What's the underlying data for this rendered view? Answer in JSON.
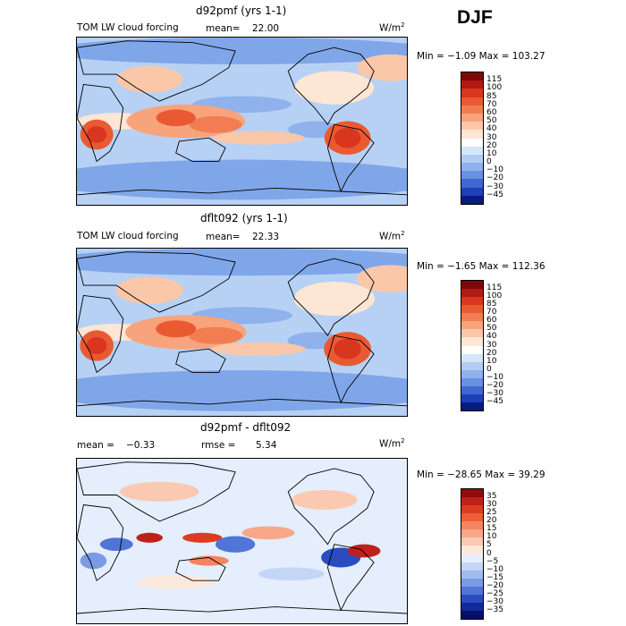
{
  "season": "DJF",
  "panels": [
    {
      "title": "d92pmf (yrs 1-1)",
      "variable": "TOM LW cloud forcing",
      "mean_label": "mean=",
      "mean": "22.00",
      "units": "W/m",
      "units_exp": "2",
      "minmax": "Min =  −1.09 Max = 103.27",
      "levels": [
        "115",
        "100",
        "85",
        "70",
        "60",
        "50",
        "40",
        "30",
        "20",
        "10",
        "0",
        "−10",
        "−20",
        "−30",
        "−45"
      ],
      "colors": [
        "#7a0a0a",
        "#b01a12",
        "#d8361e",
        "#ea5a32",
        "#f27d52",
        "#f7a47c",
        "#fac7a8",
        "#fde6d4",
        "#ffffff",
        "#d4e6fb",
        "#b2cdf4",
        "#8fb1ec",
        "#6991e1",
        "#3f68d0",
        "#1d3fb8",
        "#091a80"
      ]
    },
    {
      "title": "dflt092 (yrs 1-1)",
      "variable": "TOM LW cloud forcing",
      "mean_label": "mean=",
      "mean": "22.33",
      "units": "W/m",
      "units_exp": "2",
      "minmax": "Min =  −1.65 Max = 112.36",
      "levels": [
        "115",
        "100",
        "85",
        "70",
        "60",
        "50",
        "40",
        "30",
        "20",
        "10",
        "0",
        "−10",
        "−20",
        "−30",
        "−45"
      ],
      "colors": [
        "#7a0a0a",
        "#b01a12",
        "#d8361e",
        "#ea5a32",
        "#f27d52",
        "#f7a47c",
        "#fac7a8",
        "#fde6d4",
        "#ffffff",
        "#d4e6fb",
        "#b2cdf4",
        "#8fb1ec",
        "#6991e1",
        "#3f68d0",
        "#1d3fb8",
        "#091a80"
      ]
    },
    {
      "title": "d92pmf - dflt092",
      "mean_label": "mean =",
      "mean": "−0.33",
      "rmse_label": "rmse =",
      "rmse": "5.34",
      "units": "W/m",
      "units_exp": "2",
      "minmax": "Min = −28.65 Max =  39.29",
      "levels": [
        "35",
        "30",
        "25",
        "20",
        "15",
        "10",
        "5",
        "0",
        "−5",
        "−10",
        "−15",
        "−20",
        "−25",
        "−30",
        "−35"
      ],
      "colors": [
        "#8a0e0e",
        "#c0201a",
        "#dc3b22",
        "#ec5e38",
        "#f48460",
        "#f8a888",
        "#fbc9b2",
        "#fde8dc",
        "#e6eefc",
        "#c4d6f6",
        "#9fbbee",
        "#7a9be4",
        "#5075d6",
        "#2a4cc0",
        "#13289a",
        "#070f6a"
      ]
    }
  ],
  "chart_data": {
    "type": "heatmap",
    "season": "DJF",
    "maps": [
      {
        "title": "d92pmf (yrs 1-1)",
        "field": "TOM LW cloud forcing",
        "units": "W/m2",
        "mean": 22.0,
        "min": -1.09,
        "max": 103.27,
        "contour_levels": [
          -45,
          -30,
          -20,
          -10,
          0,
          10,
          20,
          30,
          40,
          50,
          60,
          70,
          85,
          100,
          115
        ]
      },
      {
        "title": "dflt092 (yrs 1-1)",
        "field": "TOM LW cloud forcing",
        "units": "W/m2",
        "mean": 22.33,
        "min": -1.65,
        "max": 112.36,
        "contour_levels": [
          -45,
          -30,
          -20,
          -10,
          0,
          10,
          20,
          30,
          40,
          50,
          60,
          70,
          85,
          100,
          115
        ]
      },
      {
        "title": "d92pmf - dflt092",
        "units": "W/m2",
        "mean": -0.33,
        "rmse": 5.34,
        "min": -28.65,
        "max": 39.29,
        "contour_levels": [
          -35,
          -30,
          -25,
          -20,
          -15,
          -10,
          -5,
          0,
          5,
          10,
          15,
          20,
          25,
          30,
          35
        ]
      }
    ]
  }
}
